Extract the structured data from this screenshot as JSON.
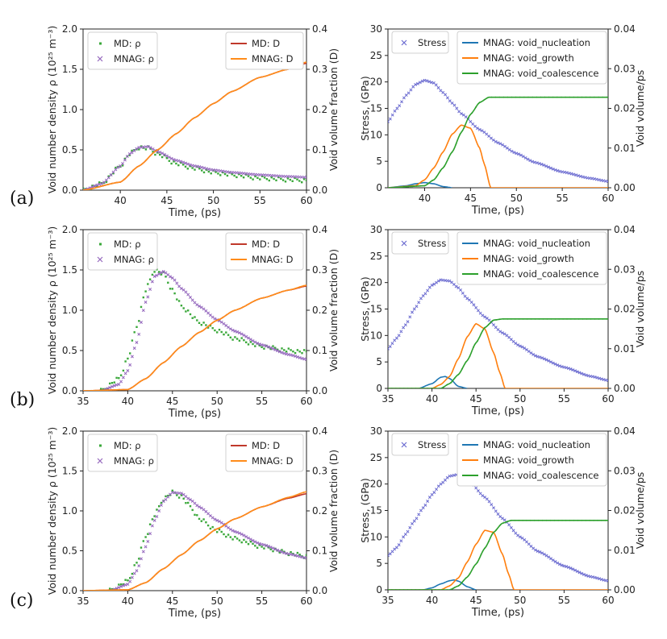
{
  "colors": {
    "md_rho": "#3aa83a",
    "mnag_rho": "#9467bd",
    "md_D": "#c0392b",
    "mnag_D": "#ff8c1a",
    "stress": "#6b6bd0",
    "nucleation": "#1f77b4",
    "growth": "#ff7f0e",
    "coalescence": "#2ca02c",
    "axis": "#222222"
  },
  "chart_data": [
    {
      "panel_label": "(a)",
      "type": "line",
      "title": "",
      "xlabel": "Time, (ps)",
      "ylabel": "Void number density ρ (10²⁵ m⁻³)",
      "y2label": "Void volume fraction (D)",
      "xlim": [
        36,
        60
      ],
      "ylim": [
        0,
        2.0
      ],
      "y2lim": [
        0,
        0.4
      ],
      "xticks": [
        "40",
        "45",
        "50",
        "55",
        "60"
      ],
      "yticks": [
        "0.0",
        "0.5",
        "1.0",
        "1.5",
        "2.0"
      ],
      "y2ticks": [
        "0.0",
        "0.1",
        "0.2",
        "0.3",
        "0.4"
      ],
      "legend_left": [
        "MD: ρ",
        "MNAG: ρ"
      ],
      "legend_right": [
        "MD: D",
        "MNAG: D"
      ],
      "series": [
        {
          "name": "MD: ρ",
          "axis": "y",
          "marker": "dot",
          "x": [
            36,
            38,
            40,
            41,
            42,
            43,
            44,
            46,
            48,
            50,
            52,
            55,
            58,
            60
          ],
          "values": [
            0.0,
            0.08,
            0.3,
            0.45,
            0.53,
            0.52,
            0.45,
            0.33,
            0.27,
            0.22,
            0.19,
            0.15,
            0.13,
            0.12
          ]
        },
        {
          "name": "MNAG: ρ",
          "axis": "y",
          "marker": "x",
          "x": [
            36,
            38,
            40,
            41,
            42,
            43,
            44,
            46,
            48,
            50,
            52,
            55,
            58,
            60
          ],
          "values": [
            0.0,
            0.08,
            0.3,
            0.45,
            0.53,
            0.54,
            0.48,
            0.37,
            0.3,
            0.25,
            0.22,
            0.19,
            0.17,
            0.16
          ]
        },
        {
          "name": "MD: D",
          "axis": "y2",
          "marker": "line",
          "x": [
            36,
            40,
            42,
            44,
            46,
            48,
            50,
            52,
            55,
            58,
            60
          ],
          "values": [
            0.0,
            0.02,
            0.06,
            0.1,
            0.14,
            0.18,
            0.215,
            0.245,
            0.28,
            0.3,
            0.315
          ]
        },
        {
          "name": "MNAG: D",
          "axis": "y2",
          "marker": "line",
          "x": [
            36,
            40,
            42,
            44,
            46,
            48,
            50,
            52,
            55,
            58,
            60
          ],
          "values": [
            0.0,
            0.02,
            0.06,
            0.1,
            0.14,
            0.18,
            0.215,
            0.245,
            0.28,
            0.3,
            0.318
          ]
        }
      ]
    },
    {
      "panel_label": "",
      "type": "line",
      "title": "",
      "xlabel": "Time, (ps)",
      "ylabel": "Stress, (GPa)",
      "y2label": "Void volume/ps",
      "xlim": [
        36,
        60
      ],
      "ylim": [
        0,
        30
      ],
      "y2lim": [
        0,
        0.04
      ],
      "xticks": [
        "40",
        "45",
        "50",
        "55",
        "60"
      ],
      "yticks": [
        "0",
        "5",
        "10",
        "15",
        "20",
        "25",
        "30"
      ],
      "y2ticks": [
        "0.00",
        "0.01",
        "0.02",
        "0.03",
        "0.04"
      ],
      "legend_left": [
        "Stress"
      ],
      "legend_right": [
        "MNAG: void_nucleation",
        "MNAG: void_growth",
        "MNAG: void_coalescence"
      ],
      "series": [
        {
          "name": "Stress",
          "axis": "y",
          "marker": "x",
          "x": [
            36,
            37,
            38,
            39,
            40,
            41,
            42,
            43,
            44,
            46,
            48,
            50,
            52,
            55,
            58,
            60
          ],
          "values": [
            12.5,
            15,
            17.5,
            19.5,
            20.3,
            19.8,
            18,
            16,
            14,
            11,
            8.5,
            6.5,
            4.8,
            3.0,
            1.8,
            1.2
          ]
        },
        {
          "name": "MNAG: void_nucleation",
          "axis": "y2",
          "marker": "line",
          "x": [
            36,
            38,
            39,
            40,
            41,
            42,
            43
          ],
          "values": [
            0.0,
            0.0005,
            0.001,
            0.0013,
            0.001,
            0.0003,
            0.0
          ]
        },
        {
          "name": "MNAG: void_growth",
          "axis": "y2",
          "marker": "line",
          "x": [
            36,
            39,
            40,
            41,
            42,
            43,
            44,
            45,
            46,
            46.5,
            47.2,
            60
          ],
          "values": [
            0.0,
            0.0005,
            0.002,
            0.005,
            0.009,
            0.0135,
            0.0158,
            0.015,
            0.01,
            0.006,
            0.0,
            0.0
          ]
        },
        {
          "name": "MNAG: void_coalescence",
          "axis": "y2",
          "marker": "line",
          "x": [
            36,
            40,
            41,
            42,
            43,
            44,
            45,
            46,
            47,
            48,
            60
          ],
          "values": [
            0.0,
            0.0005,
            0.002,
            0.005,
            0.009,
            0.014,
            0.0185,
            0.0215,
            0.0228,
            0.0228,
            0.0228
          ]
        }
      ]
    },
    {
      "panel_label": "(b)",
      "type": "line",
      "title": "",
      "xlabel": "Time, (ps)",
      "ylabel": "Void number density ρ (10²⁵ m⁻³)",
      "y2label": "Void volume fraction (D)",
      "xlim": [
        35,
        60
      ],
      "ylim": [
        0,
        2.0
      ],
      "y2lim": [
        0,
        0.4
      ],
      "xticks": [
        "35",
        "40",
        "45",
        "50",
        "55",
        "60"
      ],
      "yticks": [
        "0.0",
        "0.5",
        "1.0",
        "1.5",
        "2.0"
      ],
      "y2ticks": [
        "0.0",
        "0.1",
        "0.2",
        "0.3",
        "0.4"
      ],
      "legend_left": [
        "MD: ρ",
        "MNAG: ρ"
      ],
      "legend_right": [
        "MD: D",
        "MNAG: D"
      ],
      "series": [
        {
          "name": "MD: ρ",
          "axis": "y",
          "marker": "dot",
          "x": [
            37,
            39,
            40,
            41,
            42,
            43,
            44,
            45,
            46,
            48,
            50,
            52,
            55,
            58,
            60
          ],
          "values": [
            0.0,
            0.15,
            0.4,
            0.8,
            1.25,
            1.5,
            1.45,
            1.25,
            1.05,
            0.85,
            0.75,
            0.65,
            0.55,
            0.5,
            0.48
          ]
        },
        {
          "name": "MNAG: ρ",
          "axis": "y",
          "marker": "x",
          "x": [
            37,
            39,
            40,
            41,
            42,
            43,
            44,
            45,
            46,
            48,
            50,
            52,
            55,
            58,
            60
          ],
          "values": [
            0.0,
            0.08,
            0.25,
            0.6,
            1.1,
            1.42,
            1.48,
            1.4,
            1.27,
            1.05,
            0.88,
            0.74,
            0.57,
            0.45,
            0.39
          ]
        },
        {
          "name": "MD: D",
          "axis": "y2",
          "marker": "line",
          "x": [
            35,
            40,
            42,
            44,
            46,
            48,
            50,
            52,
            55,
            58,
            60
          ],
          "values": [
            0.0,
            0.003,
            0.03,
            0.07,
            0.11,
            0.145,
            0.175,
            0.2,
            0.23,
            0.25,
            0.26
          ]
        },
        {
          "name": "MNAG: D",
          "axis": "y2",
          "marker": "line",
          "x": [
            35,
            40,
            42,
            44,
            46,
            48,
            50,
            52,
            55,
            58,
            60
          ],
          "values": [
            0.0,
            0.003,
            0.03,
            0.07,
            0.11,
            0.145,
            0.175,
            0.2,
            0.23,
            0.25,
            0.262
          ]
        }
      ]
    },
    {
      "panel_label": "",
      "type": "line",
      "title": "",
      "xlabel": "Time, (ps)",
      "ylabel": "Stress, (GPa)",
      "y2label": "Void volume/ps",
      "xlim": [
        35,
        60
      ],
      "ylim": [
        0,
        30
      ],
      "y2lim": [
        0,
        0.04
      ],
      "xticks": [
        "35",
        "40",
        "45",
        "50",
        "55",
        "60"
      ],
      "yticks": [
        "0",
        "5",
        "10",
        "15",
        "20",
        "25",
        "30"
      ],
      "y2ticks": [
        "0.00",
        "0.01",
        "0.02",
        "0.03",
        "0.04"
      ],
      "legend_left": [
        "Stress"
      ],
      "legend_right": [
        "MNAG: void_nucleation",
        "MNAG: void_growth",
        "MNAG: void_coalescence"
      ],
      "series": [
        {
          "name": "Stress",
          "axis": "y",
          "marker": "x",
          "x": [
            35,
            36,
            37,
            38,
            39,
            40,
            41,
            42,
            43,
            44,
            46,
            48,
            50,
            52,
            55,
            58,
            60
          ],
          "values": [
            7.5,
            9.5,
            12,
            15,
            17.5,
            19.5,
            20.5,
            20.3,
            19,
            17,
            13.5,
            10.5,
            8,
            6,
            4,
            2.3,
            1.5
          ]
        },
        {
          "name": "MNAG: void_nucleation",
          "axis": "y2",
          "marker": "line",
          "x": [
            35,
            38.5,
            40,
            41,
            41.5,
            42,
            43,
            44
          ],
          "values": [
            0.0,
            0.0,
            0.0012,
            0.0028,
            0.003,
            0.0025,
            0.0005,
            0.0
          ]
        },
        {
          "name": "MNAG: void_growth",
          "axis": "y2",
          "marker": "line",
          "x": [
            35,
            40,
            41,
            42,
            43,
            44,
            45,
            46,
            47,
            47.7,
            48.3,
            60
          ],
          "values": [
            0.0,
            0.0,
            0.001,
            0.003,
            0.0075,
            0.013,
            0.0163,
            0.015,
            0.009,
            0.004,
            0.0,
            0.0
          ]
        },
        {
          "name": "MNAG: void_coalescence",
          "axis": "y2",
          "marker": "line",
          "x": [
            35,
            41,
            42,
            43,
            44,
            45,
            46,
            47,
            48,
            49,
            60
          ],
          "values": [
            0.0,
            0.0,
            0.0012,
            0.0035,
            0.007,
            0.0115,
            0.0153,
            0.0172,
            0.0175,
            0.0175,
            0.0175
          ]
        }
      ]
    },
    {
      "panel_label": "(c)",
      "type": "line",
      "title": "",
      "xlabel": "Time, (ps)",
      "ylabel": "Void number density ρ (10²⁵ m⁻³)",
      "y2label": "Void volume fraction (D)",
      "xlim": [
        35,
        60
      ],
      "ylim": [
        0,
        2.0
      ],
      "y2lim": [
        0,
        0.4
      ],
      "xticks": [
        "35",
        "40",
        "45",
        "50",
        "55",
        "60"
      ],
      "yticks": [
        "0.0",
        "0.5",
        "1.0",
        "1.5",
        "2.0"
      ],
      "y2ticks": [
        "0.0",
        "0.1",
        "0.2",
        "0.3",
        "0.4"
      ],
      "legend_left": [
        "MD: ρ",
        "MNAG: ρ"
      ],
      "legend_right": [
        "MD: D",
        "MNAG: D"
      ],
      "series": [
        {
          "name": "MD: ρ",
          "axis": "y",
          "marker": "dot",
          "x": [
            38,
            40,
            41,
            42,
            43,
            44,
            45,
            46,
            47,
            48,
            50,
            52,
            55,
            58,
            60
          ],
          "values": [
            0.0,
            0.12,
            0.35,
            0.68,
            0.95,
            1.15,
            1.23,
            1.18,
            1.05,
            0.9,
            0.75,
            0.65,
            0.55,
            0.47,
            0.43
          ]
        },
        {
          "name": "MNAG: ρ",
          "axis": "y",
          "marker": "x",
          "x": [
            38,
            40,
            41,
            42,
            43,
            44,
            45,
            46,
            47,
            48,
            50,
            52,
            55,
            58,
            60
          ],
          "values": [
            0.0,
            0.08,
            0.25,
            0.55,
            0.88,
            1.12,
            1.23,
            1.22,
            1.14,
            1.05,
            0.88,
            0.74,
            0.58,
            0.46,
            0.41
          ]
        },
        {
          "name": "MD: D",
          "axis": "y2",
          "marker": "line",
          "x": [
            35,
            40,
            42,
            44,
            46,
            48,
            50,
            52,
            55,
            58,
            60
          ],
          "values": [
            0.0,
            0.002,
            0.02,
            0.055,
            0.09,
            0.125,
            0.155,
            0.18,
            0.21,
            0.232,
            0.243
          ]
        },
        {
          "name": "MNAG: D",
          "axis": "y2",
          "marker": "line",
          "x": [
            35,
            40,
            42,
            44,
            46,
            48,
            50,
            52,
            55,
            58,
            60
          ],
          "values": [
            0.0,
            0.002,
            0.02,
            0.055,
            0.09,
            0.125,
            0.155,
            0.18,
            0.21,
            0.234,
            0.248
          ]
        }
      ]
    },
    {
      "panel_label": "",
      "type": "line",
      "title": "",
      "xlabel": "Time, (ps)",
      "ylabel": "Stress, (GPa)",
      "y2label": "Void volume/ps",
      "xlim": [
        35,
        60
      ],
      "ylim": [
        0,
        30
      ],
      "y2lim": [
        0,
        0.04
      ],
      "xticks": [
        "35",
        "40",
        "45",
        "50",
        "55",
        "60"
      ],
      "yticks": [
        "0",
        "5",
        "10",
        "15",
        "20",
        "25",
        "30"
      ],
      "y2ticks": [
        "0.00",
        "0.01",
        "0.02",
        "0.03",
        "0.04"
      ],
      "legend_left": [
        "Stress"
      ],
      "legend_right": [
        "MNAG: void_nucleation",
        "MNAG: void_growth",
        "MNAG: void_coalescence"
      ],
      "series": [
        {
          "name": "Stress",
          "axis": "y",
          "marker": "x",
          "x": [
            35,
            36,
            37,
            38,
            39,
            40,
            41,
            42,
            43,
            44,
            46,
            48,
            50,
            52,
            55,
            58,
            60
          ],
          "values": [
            6.5,
            8,
            10.5,
            13,
            15.5,
            18,
            20,
            21.5,
            21.8,
            21,
            17.5,
            13.5,
            10,
            7.3,
            4.5,
            2.5,
            1.7
          ]
        },
        {
          "name": "MNAG: void_nucleation",
          "axis": "y2",
          "marker": "line",
          "x": [
            35,
            39,
            40,
            41,
            42,
            42.5,
            43,
            44,
            45
          ],
          "values": [
            0.0,
            0.0,
            0.0005,
            0.0015,
            0.0023,
            0.0025,
            0.0022,
            0.0008,
            0.0
          ]
        },
        {
          "name": "MNAG: void_growth",
          "axis": "y2",
          "marker": "line",
          "x": [
            35,
            41,
            42,
            43,
            44,
            45,
            46,
            47,
            48,
            48.7,
            49.3,
            60
          ],
          "values": [
            0.0,
            0.0,
            0.001,
            0.003,
            0.007,
            0.0115,
            0.015,
            0.0145,
            0.009,
            0.004,
            0.0,
            0.0
          ]
        },
        {
          "name": "MNAG: void_coalescence",
          "axis": "y2",
          "marker": "line",
          "x": [
            35,
            42,
            43,
            44,
            45,
            46,
            47,
            48,
            49,
            50,
            60
          ],
          "values": [
            0.0,
            0.0,
            0.001,
            0.0032,
            0.0065,
            0.0105,
            0.0145,
            0.0168,
            0.0175,
            0.0175,
            0.0175
          ]
        }
      ]
    }
  ]
}
